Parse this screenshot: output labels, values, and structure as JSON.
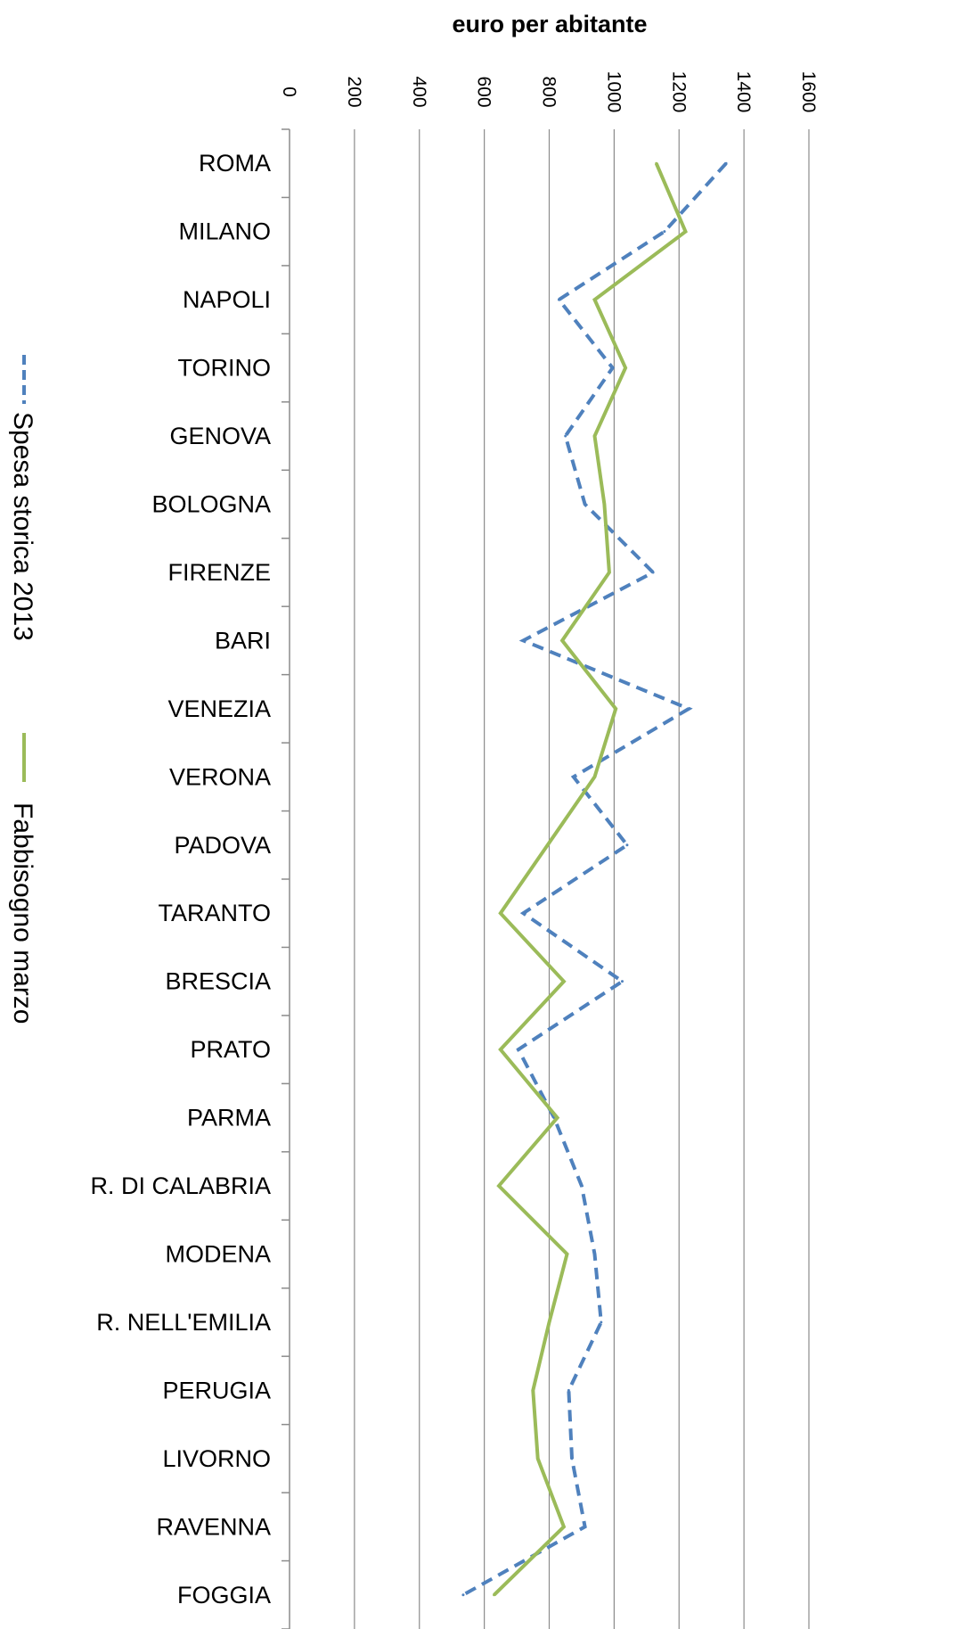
{
  "chart_data": {
    "type": "line",
    "orientation": "horizontal-values",
    "title": "",
    "xlabel": "euro per abitante",
    "ylabel": "",
    "xlim": [
      0,
      1600
    ],
    "xticks": [
      0,
      200,
      400,
      600,
      800,
      1000,
      1200,
      1400,
      1600
    ],
    "grid": true,
    "legend_position": "left",
    "categories": [
      "ROMA",
      "MILANO",
      "NAPOLI",
      "TORINO",
      "GENOVA",
      "BOLOGNA",
      "FIRENZE",
      "BARI",
      "VENEZIA",
      "VERONA",
      "PADOVA",
      "TARANTO",
      "BRESCIA",
      "PRATO",
      "PARMA",
      "R. DI CALABRIA",
      "MODENA",
      "R. NELL'EMILIA",
      "PERUGIA",
      "LIVORNO",
      "RAVENNA",
      "FOGGIA"
    ],
    "series": [
      {
        "name": "Spesa storica 2013",
        "color": "#4f81bd",
        "dashed": true,
        "values": [
          1345,
          1155,
          830,
          995,
          850,
          910,
          1120,
          720,
          1230,
          875,
          1040,
          720,
          1025,
          705,
          815,
          900,
          940,
          960,
          860,
          870,
          910,
          535
        ]
      },
      {
        "name": "Fabbisogno marzo",
        "color": "#9bbb59",
        "dashed": false,
        "values": [
          1130,
          1220,
          940,
          1035,
          940,
          970,
          985,
          840,
          1005,
          940,
          795,
          650,
          845,
          650,
          825,
          645,
          855,
          800,
          750,
          765,
          845,
          630
        ]
      }
    ]
  }
}
